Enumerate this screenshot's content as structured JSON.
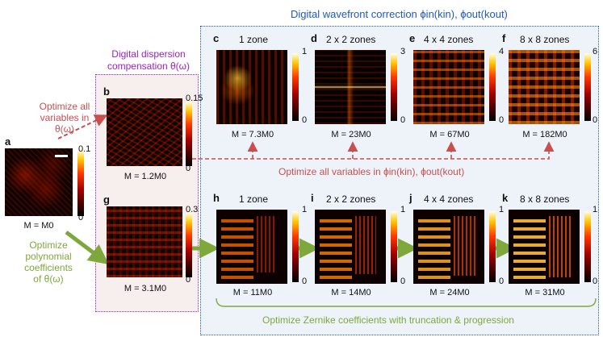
{
  "titles": {
    "wavefront": "Digital wavefront correction ϕin(kin), ϕout(kout)",
    "dispersion_line1": "Digital dispersion",
    "dispersion_line2": "compensation θ(ω)",
    "optimize_all_left_1": "Optimize all",
    "optimize_all_left_2": "variables in",
    "optimize_all_left_3": "θ(ω)",
    "optimize_all_right": "Optimize all variables in ϕin(kin), ϕout(kout)",
    "optimize_poly_1": "Optimize",
    "optimize_poly_2": "polynomial",
    "optimize_poly_3": "coefficients",
    "optimize_poly_4": "of θ(ω)",
    "zernike": "Optimize Zernike coefficients with truncation & progression"
  },
  "panels": {
    "a": {
      "letter": "a",
      "m": "M = M0",
      "cmax": "0.1",
      "cmin": "0"
    },
    "b": {
      "letter": "b",
      "m": "M = 1.2M0",
      "cmax": "0.15",
      "cmin": "0"
    },
    "g": {
      "letter": "g",
      "m": "M = 3.1M0",
      "cmax": "0.3",
      "cmin": "0"
    },
    "c": {
      "letter": "c",
      "zone": "1 zone",
      "m": "M = 7.3M0",
      "cmax": "1",
      "cmin": "0"
    },
    "d": {
      "letter": "d",
      "zone": "2 x 2 zones",
      "m": "M = 23M0",
      "cmax": "3",
      "cmin": "0"
    },
    "e": {
      "letter": "e",
      "zone": "4 x 4 zones",
      "m": "M = 67M0",
      "cmax": "4",
      "cmin": "0"
    },
    "f": {
      "letter": "f",
      "zone": "8 x 8 zones",
      "m": "M = 182M0",
      "cmax": "6",
      "cmin": "0"
    },
    "h": {
      "letter": "h",
      "zone": "1 zone",
      "m": "M = 11M0",
      "cmax": "1",
      "cmin": "0"
    },
    "i": {
      "letter": "i",
      "zone": "2 x 2 zones",
      "m": "M = 14M0",
      "cmax": "1",
      "cmin": "0"
    },
    "j": {
      "letter": "j",
      "zone": "4 x 4 zones",
      "m": "M = 24M0",
      "cmax": "1",
      "cmin": "0"
    },
    "k": {
      "letter": "k",
      "zone": "8 x 8 zones",
      "m": "M = 31M0",
      "cmax": "1",
      "cmin": "0"
    }
  },
  "colors": {
    "blue": "#1f57c6",
    "purple": "#9c1fc4",
    "red": "#c94f4f",
    "green": "#7ea83c",
    "purple_fill": "#f7eeee"
  }
}
